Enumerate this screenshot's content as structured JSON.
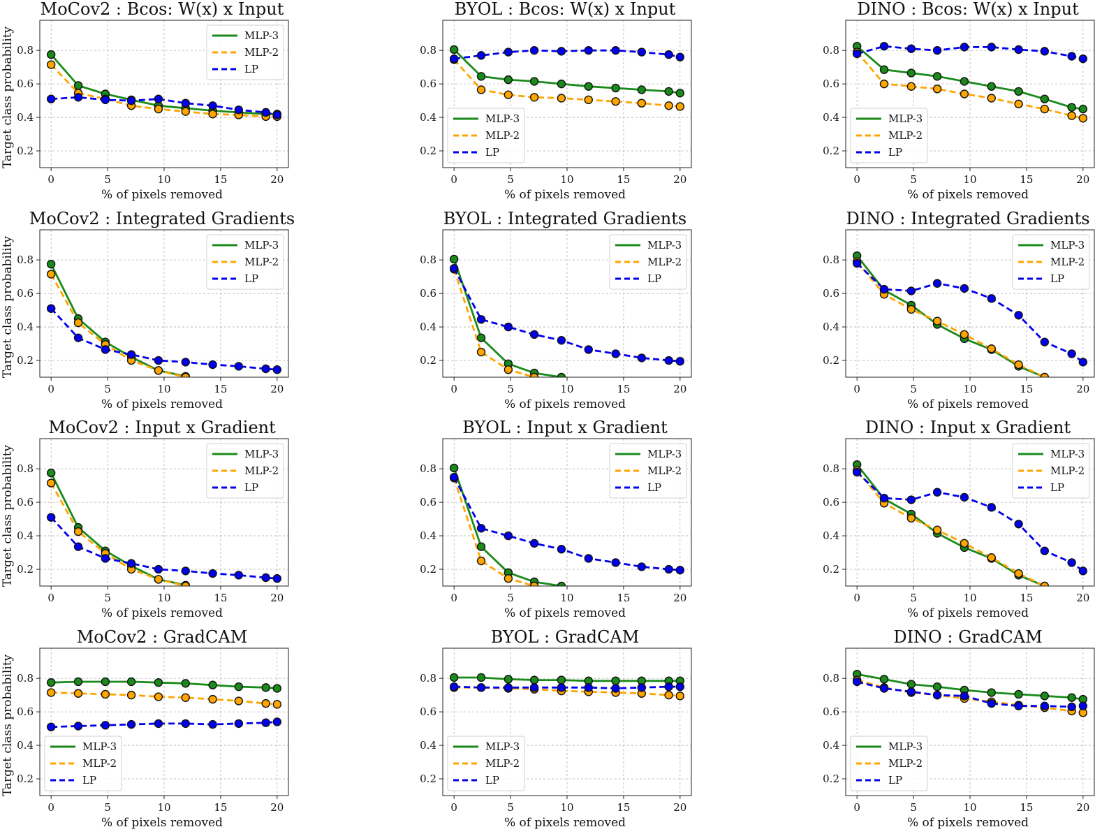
{
  "figure": {
    "xlabel": "% of pixels removed",
    "ylabel": "Target class probability",
    "colors": {
      "MLP-3": "#1a8a1a",
      "MLP-2": "#ffa500",
      "LP": "#0000ee"
    }
  },
  "chart_data": [
    {
      "type": "line",
      "title": "MoCov2 : Bcos: W(x) x Input",
      "legend": "top-right",
      "xlim": [
        -1,
        21
      ],
      "ylim": [
        0.1,
        0.98
      ],
      "xticks": [
        "0",
        "5",
        "10",
        "15",
        "20"
      ],
      "yticks": [
        "0.2",
        "0.4",
        "0.6",
        "0.8"
      ],
      "x": [
        0,
        2.4,
        4.8,
        7.1,
        9.5,
        11.9,
        14.3,
        16.6,
        19,
        20
      ],
      "series": [
        {
          "name": "MLP-3",
          "values": [
            0.775,
            0.59,
            0.54,
            0.505,
            0.47,
            0.455,
            0.44,
            0.43,
            0.42,
            0.42
          ]
        },
        {
          "name": "MLP-2",
          "values": [
            0.715,
            0.545,
            0.51,
            0.47,
            0.45,
            0.435,
            0.42,
            0.415,
            0.405,
            0.405
          ]
        },
        {
          "name": "LP",
          "values": [
            0.51,
            0.52,
            0.505,
            0.5,
            0.51,
            0.485,
            0.47,
            0.445,
            0.43,
            0.415
          ]
        }
      ]
    },
    {
      "type": "line",
      "title": "BYOL : Bcos: W(x) x Input",
      "legend": "bottom-left",
      "xlim": [
        -1,
        21
      ],
      "ylim": [
        0.1,
        0.98
      ],
      "xticks": [
        "0",
        "5",
        "10",
        "15",
        "20"
      ],
      "yticks": [
        "0.2",
        "0.4",
        "0.6",
        "0.8"
      ],
      "x": [
        0,
        2.4,
        4.8,
        7.1,
        9.5,
        11.9,
        14.3,
        16.6,
        19,
        20
      ],
      "series": [
        {
          "name": "MLP-3",
          "values": [
            0.805,
            0.645,
            0.625,
            0.615,
            0.6,
            0.585,
            0.575,
            0.565,
            0.555,
            0.545
          ]
        },
        {
          "name": "MLP-2",
          "values": [
            0.745,
            0.565,
            0.535,
            0.52,
            0.515,
            0.505,
            0.495,
            0.485,
            0.47,
            0.465
          ]
        },
        {
          "name": "LP",
          "values": [
            0.75,
            0.77,
            0.79,
            0.8,
            0.795,
            0.8,
            0.8,
            0.79,
            0.775,
            0.76
          ]
        }
      ]
    },
    {
      "type": "line",
      "title": "DINO : Bcos: W(x) x Input",
      "legend": "bottom-left",
      "xlim": [
        -1,
        21
      ],
      "ylim": [
        0.1,
        0.98
      ],
      "xticks": [
        "0",
        "5",
        "10",
        "15",
        "20"
      ],
      "yticks": [
        "0.2",
        "0.4",
        "0.6",
        "0.8"
      ],
      "x": [
        0,
        2.4,
        4.8,
        7.1,
        9.5,
        11.9,
        14.3,
        16.6,
        19,
        20
      ],
      "series": [
        {
          "name": "MLP-3",
          "values": [
            0.825,
            0.685,
            0.665,
            0.645,
            0.615,
            0.585,
            0.555,
            0.51,
            0.46,
            0.45
          ]
        },
        {
          "name": "MLP-2",
          "values": [
            0.79,
            0.6,
            0.585,
            0.57,
            0.54,
            0.515,
            0.48,
            0.45,
            0.41,
            0.395
          ]
        },
        {
          "name": "LP",
          "values": [
            0.78,
            0.825,
            0.81,
            0.8,
            0.82,
            0.82,
            0.805,
            0.795,
            0.765,
            0.75
          ]
        }
      ]
    },
    {
      "type": "line",
      "title": "MoCov2 : Integrated Gradients",
      "legend": "top-right",
      "xlim": [
        -1,
        21
      ],
      "ylim": [
        0.1,
        0.98
      ],
      "xticks": [
        "0",
        "5",
        "10",
        "15",
        "20"
      ],
      "yticks": [
        "0.2",
        "0.4",
        "0.6",
        "0.8"
      ],
      "x": [
        0,
        2.4,
        4.8,
        7.1,
        9.5,
        11.9,
        14.3,
        16.6,
        19,
        20
      ],
      "series": [
        {
          "name": "MLP-3",
          "values": [
            0.775,
            0.45,
            0.31,
            0.22,
            0.14,
            0.105,
            null,
            null,
            null,
            null
          ]
        },
        {
          "name": "MLP-2",
          "values": [
            0.715,
            0.425,
            0.295,
            0.2,
            0.14,
            0.1,
            null,
            null,
            null,
            null
          ]
        },
        {
          "name": "LP",
          "values": [
            0.51,
            0.335,
            0.265,
            0.235,
            0.2,
            0.19,
            0.175,
            0.165,
            0.15,
            0.145
          ]
        }
      ]
    },
    {
      "type": "line",
      "title": "BYOL : Integrated Gradients",
      "legend": "top-right",
      "xlim": [
        -1,
        21
      ],
      "ylim": [
        0.1,
        0.98
      ],
      "xticks": [
        "0",
        "5",
        "10",
        "15",
        "20"
      ],
      "yticks": [
        "0.2",
        "0.4",
        "0.6",
        "0.8"
      ],
      "x": [
        0,
        2.4,
        4.8,
        7.1,
        9.5,
        11.9,
        14.3,
        16.6,
        19,
        20
      ],
      "series": [
        {
          "name": "MLP-3",
          "values": [
            0.805,
            0.335,
            0.18,
            0.125,
            0.1,
            null,
            null,
            null,
            null,
            null
          ]
        },
        {
          "name": "MLP-2",
          "values": [
            0.745,
            0.25,
            0.145,
            0.1,
            null,
            null,
            null,
            null,
            null,
            null
          ]
        },
        {
          "name": "LP",
          "values": [
            0.75,
            0.445,
            0.4,
            0.355,
            0.32,
            0.265,
            0.24,
            0.215,
            0.2,
            0.195
          ]
        }
      ]
    },
    {
      "type": "line",
      "title": "DINO : Integrated Gradients",
      "legend": "top-right",
      "xlim": [
        -1,
        21
      ],
      "ylim": [
        0.1,
        0.98
      ],
      "xticks": [
        "0",
        "5",
        "10",
        "15",
        "20"
      ],
      "yticks": [
        "0.2",
        "0.4",
        "0.6",
        "0.8"
      ],
      "x": [
        0,
        2.4,
        4.8,
        7.1,
        9.5,
        11.9,
        14.3,
        16.6,
        19,
        20
      ],
      "series": [
        {
          "name": "MLP-3",
          "values": [
            0.825,
            0.62,
            0.53,
            0.415,
            0.33,
            0.265,
            0.165,
            0.1,
            null,
            null
          ]
        },
        {
          "name": "MLP-2",
          "values": [
            0.79,
            0.595,
            0.505,
            0.435,
            0.355,
            0.27,
            0.175,
            0.1,
            null,
            null
          ]
        },
        {
          "name": "LP",
          "values": [
            0.78,
            0.625,
            0.615,
            0.66,
            0.63,
            0.57,
            0.47,
            0.31,
            0.24,
            0.19
          ]
        }
      ]
    },
    {
      "type": "line",
      "title": "MoCov2 : Input x Gradient",
      "legend": "top-right",
      "xlim": [
        -1,
        21
      ],
      "ylim": [
        0.1,
        0.98
      ],
      "xticks": [
        "0",
        "5",
        "10",
        "15",
        "20"
      ],
      "yticks": [
        "0.2",
        "0.4",
        "0.6",
        "0.8"
      ],
      "x": [
        0,
        2.4,
        4.8,
        7.1,
        9.5,
        11.9,
        14.3,
        16.6,
        19,
        20
      ],
      "series": [
        {
          "name": "MLP-3",
          "values": [
            0.775,
            0.45,
            0.31,
            0.22,
            0.14,
            0.105,
            null,
            null,
            null,
            null
          ]
        },
        {
          "name": "MLP-2",
          "values": [
            0.715,
            0.425,
            0.295,
            0.2,
            0.14,
            0.1,
            null,
            null,
            null,
            null
          ]
        },
        {
          "name": "LP",
          "values": [
            0.51,
            0.335,
            0.265,
            0.235,
            0.2,
            0.19,
            0.175,
            0.165,
            0.15,
            0.145
          ]
        }
      ]
    },
    {
      "type": "line",
      "title": "BYOL : Input x Gradient",
      "legend": "top-right",
      "xlim": [
        -1,
        21
      ],
      "ylim": [
        0.1,
        0.98
      ],
      "xticks": [
        "0",
        "5",
        "10",
        "15",
        "20"
      ],
      "yticks": [
        "0.2",
        "0.4",
        "0.6",
        "0.8"
      ],
      "x": [
        0,
        2.4,
        4.8,
        7.1,
        9.5,
        11.9,
        14.3,
        16.6,
        19,
        20
      ],
      "series": [
        {
          "name": "MLP-3",
          "values": [
            0.805,
            0.335,
            0.18,
            0.125,
            0.1,
            null,
            null,
            null,
            null,
            null
          ]
        },
        {
          "name": "MLP-2",
          "values": [
            0.745,
            0.25,
            0.145,
            0.1,
            null,
            null,
            null,
            null,
            null,
            null
          ]
        },
        {
          "name": "LP",
          "values": [
            0.75,
            0.445,
            0.4,
            0.355,
            0.32,
            0.265,
            0.24,
            0.215,
            0.2,
            0.195
          ]
        }
      ]
    },
    {
      "type": "line",
      "title": "DINO : Input x Gradient",
      "legend": "top-right",
      "xlim": [
        -1,
        21
      ],
      "ylim": [
        0.1,
        0.98
      ],
      "xticks": [
        "0",
        "5",
        "10",
        "15",
        "20"
      ],
      "yticks": [
        "0.2",
        "0.4",
        "0.6",
        "0.8"
      ],
      "x": [
        0,
        2.4,
        4.8,
        7.1,
        9.5,
        11.9,
        14.3,
        16.6,
        19,
        20
      ],
      "series": [
        {
          "name": "MLP-3",
          "values": [
            0.825,
            0.62,
            0.53,
            0.415,
            0.33,
            0.265,
            0.165,
            0.1,
            null,
            null
          ]
        },
        {
          "name": "MLP-2",
          "values": [
            0.79,
            0.595,
            0.505,
            0.435,
            0.355,
            0.27,
            0.175,
            0.1,
            null,
            null
          ]
        },
        {
          "name": "LP",
          "values": [
            0.78,
            0.625,
            0.615,
            0.66,
            0.63,
            0.57,
            0.47,
            0.31,
            0.24,
            0.19
          ]
        }
      ]
    },
    {
      "type": "line",
      "title": "MoCov2 : GradCAM",
      "legend": "bottom-left",
      "xlim": [
        -1,
        21
      ],
      "ylim": [
        0.1,
        0.98
      ],
      "xticks": [
        "0",
        "5",
        "10",
        "15",
        "20"
      ],
      "yticks": [
        "0.2",
        "0.4",
        "0.6",
        "0.8"
      ],
      "x": [
        0,
        2.4,
        4.8,
        7.1,
        9.5,
        11.9,
        14.3,
        16.6,
        19,
        20
      ],
      "series": [
        {
          "name": "MLP-3",
          "values": [
            0.775,
            0.78,
            0.78,
            0.78,
            0.775,
            0.77,
            0.76,
            0.75,
            0.745,
            0.74
          ]
        },
        {
          "name": "MLP-2",
          "values": [
            0.715,
            0.71,
            0.705,
            0.7,
            0.69,
            0.685,
            0.675,
            0.665,
            0.65,
            0.645
          ]
        },
        {
          "name": "LP",
          "values": [
            0.51,
            0.515,
            0.52,
            0.525,
            0.53,
            0.53,
            0.525,
            0.53,
            0.535,
            0.54
          ]
        }
      ]
    },
    {
      "type": "line",
      "title": "BYOL : GradCAM",
      "legend": "bottom-left",
      "xlim": [
        -1,
        21
      ],
      "ylim": [
        0.1,
        0.98
      ],
      "xticks": [
        "0",
        "5",
        "10",
        "15",
        "20"
      ],
      "yticks": [
        "0.2",
        "0.4",
        "0.6",
        "0.8"
      ],
      "x": [
        0,
        2.4,
        4.8,
        7.1,
        9.5,
        11.9,
        14.3,
        16.6,
        19,
        20
      ],
      "series": [
        {
          "name": "MLP-3",
          "values": [
            0.805,
            0.805,
            0.795,
            0.79,
            0.79,
            0.785,
            0.785,
            0.785,
            0.785,
            0.785
          ]
        },
        {
          "name": "MLP-2",
          "values": [
            0.745,
            0.745,
            0.74,
            0.735,
            0.725,
            0.72,
            0.715,
            0.71,
            0.7,
            0.695
          ]
        },
        {
          "name": "LP",
          "values": [
            0.75,
            0.745,
            0.745,
            0.745,
            0.745,
            0.745,
            0.74,
            0.745,
            0.75,
            0.75
          ]
        }
      ]
    },
    {
      "type": "line",
      "title": "DINO : GradCAM",
      "legend": "bottom-left",
      "xlim": [
        -1,
        21
      ],
      "ylim": [
        0.1,
        0.98
      ],
      "xticks": [
        "0",
        "5",
        "10",
        "15",
        "20"
      ],
      "yticks": [
        "0.2",
        "0.4",
        "0.6",
        "0.8"
      ],
      "x": [
        0,
        2.4,
        4.8,
        7.1,
        9.5,
        11.9,
        14.3,
        16.6,
        19,
        20
      ],
      "series": [
        {
          "name": "MLP-3",
          "values": [
            0.825,
            0.795,
            0.765,
            0.75,
            0.73,
            0.715,
            0.705,
            0.695,
            0.685,
            0.675
          ]
        },
        {
          "name": "MLP-2",
          "values": [
            0.79,
            0.745,
            0.715,
            0.7,
            0.68,
            0.66,
            0.64,
            0.625,
            0.605,
            0.595
          ]
        },
        {
          "name": "LP",
          "values": [
            0.78,
            0.74,
            0.72,
            0.7,
            0.695,
            0.65,
            0.635,
            0.635,
            0.63,
            0.635
          ]
        }
      ]
    }
  ]
}
